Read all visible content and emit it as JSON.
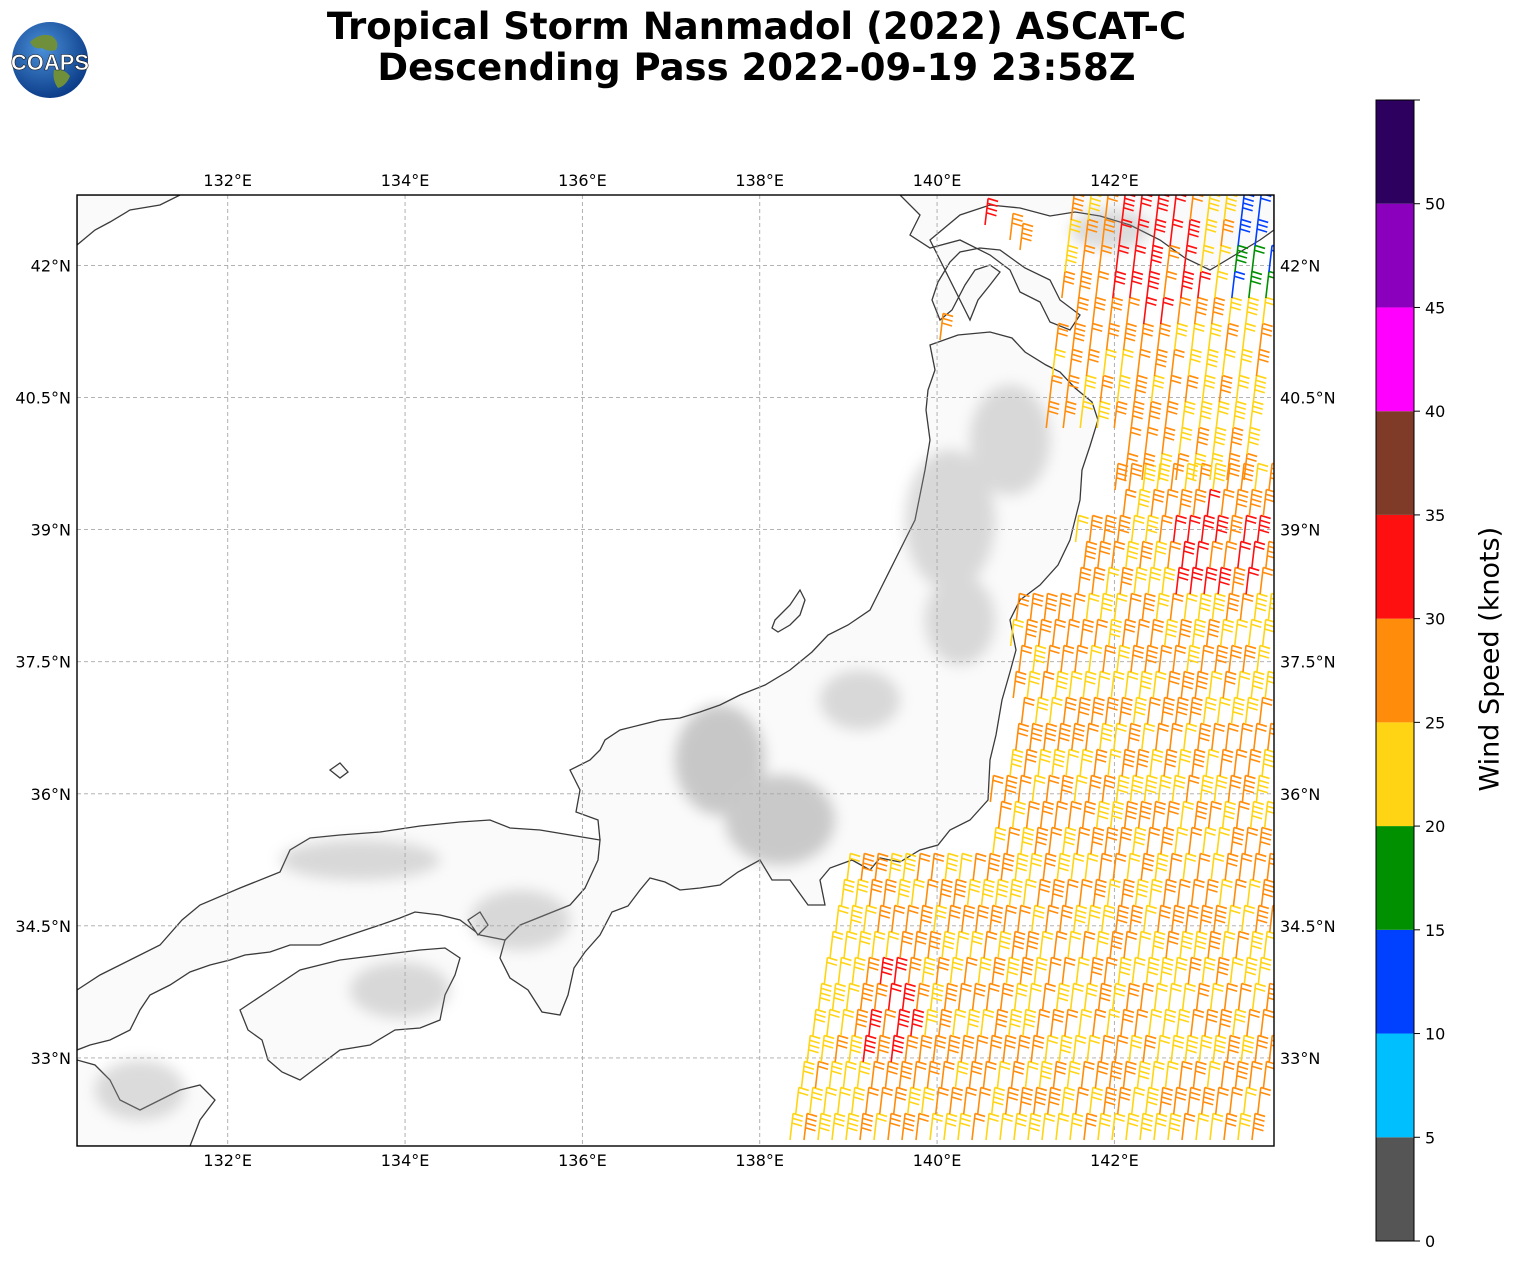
{
  "header": {
    "title_line1": "Tropical Storm Nanmadol (2022) ASCAT-C",
    "title_line2": "Descending Pass 2022-09-19 23:58Z"
  },
  "logo": {
    "text": "COAPS"
  },
  "map": {
    "lon_range": [
      130.3,
      143.8
    ],
    "lat_range": [
      32.0,
      42.8
    ],
    "lon_ticks": [
      "132°E",
      "134°E",
      "136°E",
      "138°E",
      "140°E",
      "142°E"
    ],
    "lat_ticks": [
      "42°N",
      "40.5°N",
      "39°N",
      "37.5°N",
      "36°N",
      "34.5°N",
      "33°N"
    ],
    "gridlines": "dashed gray",
    "terrain": "grayscale elevation shading",
    "icon": "wind-barb-icon"
  },
  "colorbar": {
    "label": "Wind Speed (knots)",
    "ticks": [
      "0",
      "5",
      "10",
      "15",
      "20",
      "25",
      "30",
      "35",
      "40",
      "45",
      "50"
    ],
    "colors": [
      "#555555",
      "#00bfff",
      "#0040ff",
      "#009000",
      "#ffd414",
      "#ff8c0a",
      "#ff1010",
      "#7f3a28",
      "#ff00ff",
      "#8a00bd",
      "#2d0060"
    ]
  }
}
